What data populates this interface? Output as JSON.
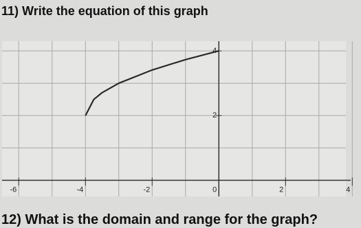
{
  "questions": [
    "11) Write the equation of this graph",
    "12) What is the domain and range for the graph?"
  ],
  "chart_data": {
    "type": "line",
    "x": [
      -4,
      -3.75,
      -3.5,
      -3,
      -2,
      -1,
      0
    ],
    "series": [
      {
        "color": "#2a2a2a",
        "values": [
          2,
          2.5,
          2.71,
          3,
          3.41,
          3.73,
          4
        ]
      }
    ],
    "xlim": [
      -6.5,
      4.2
    ],
    "ylim": [
      -0.5,
      4.3
    ],
    "xticks": [
      -6,
      -4,
      -2,
      0,
      2,
      4
    ],
    "yticks": [
      2,
      4
    ],
    "xgrid": [
      -6,
      -5,
      -4,
      -3,
      -2,
      -1,
      0,
      1,
      2,
      3,
      4
    ],
    "ygrid": [
      0,
      1,
      2,
      3,
      4
    ],
    "grid": true
  }
}
